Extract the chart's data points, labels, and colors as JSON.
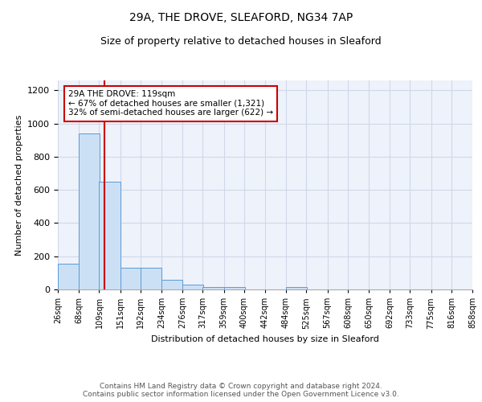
{
  "title1": "29A, THE DROVE, SLEAFORD, NG34 7AP",
  "title2": "Size of property relative to detached houses in Sleaford",
  "xlabel": "Distribution of detached houses by size in Sleaford",
  "ylabel": "Number of detached properties",
  "bin_edges": [
    26,
    68,
    109,
    151,
    192,
    234,
    276,
    317,
    359,
    400,
    442,
    484,
    525,
    567,
    608,
    650,
    692,
    733,
    775,
    816,
    858
  ],
  "bar_heights": [
    155,
    940,
    650,
    130,
    130,
    60,
    28,
    13,
    13,
    0,
    0,
    13,
    0,
    0,
    0,
    0,
    0,
    0,
    0,
    0
  ],
  "bar_color": "#cce0f5",
  "bar_edge_color": "#5b9bd5",
  "property_line_x": 119,
  "red_line_color": "#cc0000",
  "annotation_text": "29A THE DROVE: 119sqm\n← 67% of detached houses are smaller (1,321)\n32% of semi-detached houses are larger (622) →",
  "annotation_box_color": "white",
  "annotation_box_edge": "#cc0000",
  "ylim": [
    0,
    1260
  ],
  "yticks": [
    0,
    200,
    400,
    600,
    800,
    1000,
    1200
  ],
  "grid_color": "#d0d8e8",
  "bg_color": "#eef2fa",
  "footer": "Contains HM Land Registry data © Crown copyright and database right 2024.\nContains public sector information licensed under the Open Government Licence v3.0.",
  "tick_labels": [
    "26sqm",
    "68sqm",
    "109sqm",
    "151sqm",
    "192sqm",
    "234sqm",
    "276sqm",
    "317sqm",
    "359sqm",
    "400sqm",
    "442sqm",
    "484sqm",
    "525sqm",
    "567sqm",
    "608sqm",
    "650sqm",
    "692sqm",
    "733sqm",
    "775sqm",
    "816sqm",
    "858sqm"
  ],
  "title1_fontsize": 10,
  "title2_fontsize": 9,
  "ylabel_fontsize": 8,
  "xlabel_fontsize": 8,
  "footer_fontsize": 6.5,
  "tick_fontsize": 7
}
